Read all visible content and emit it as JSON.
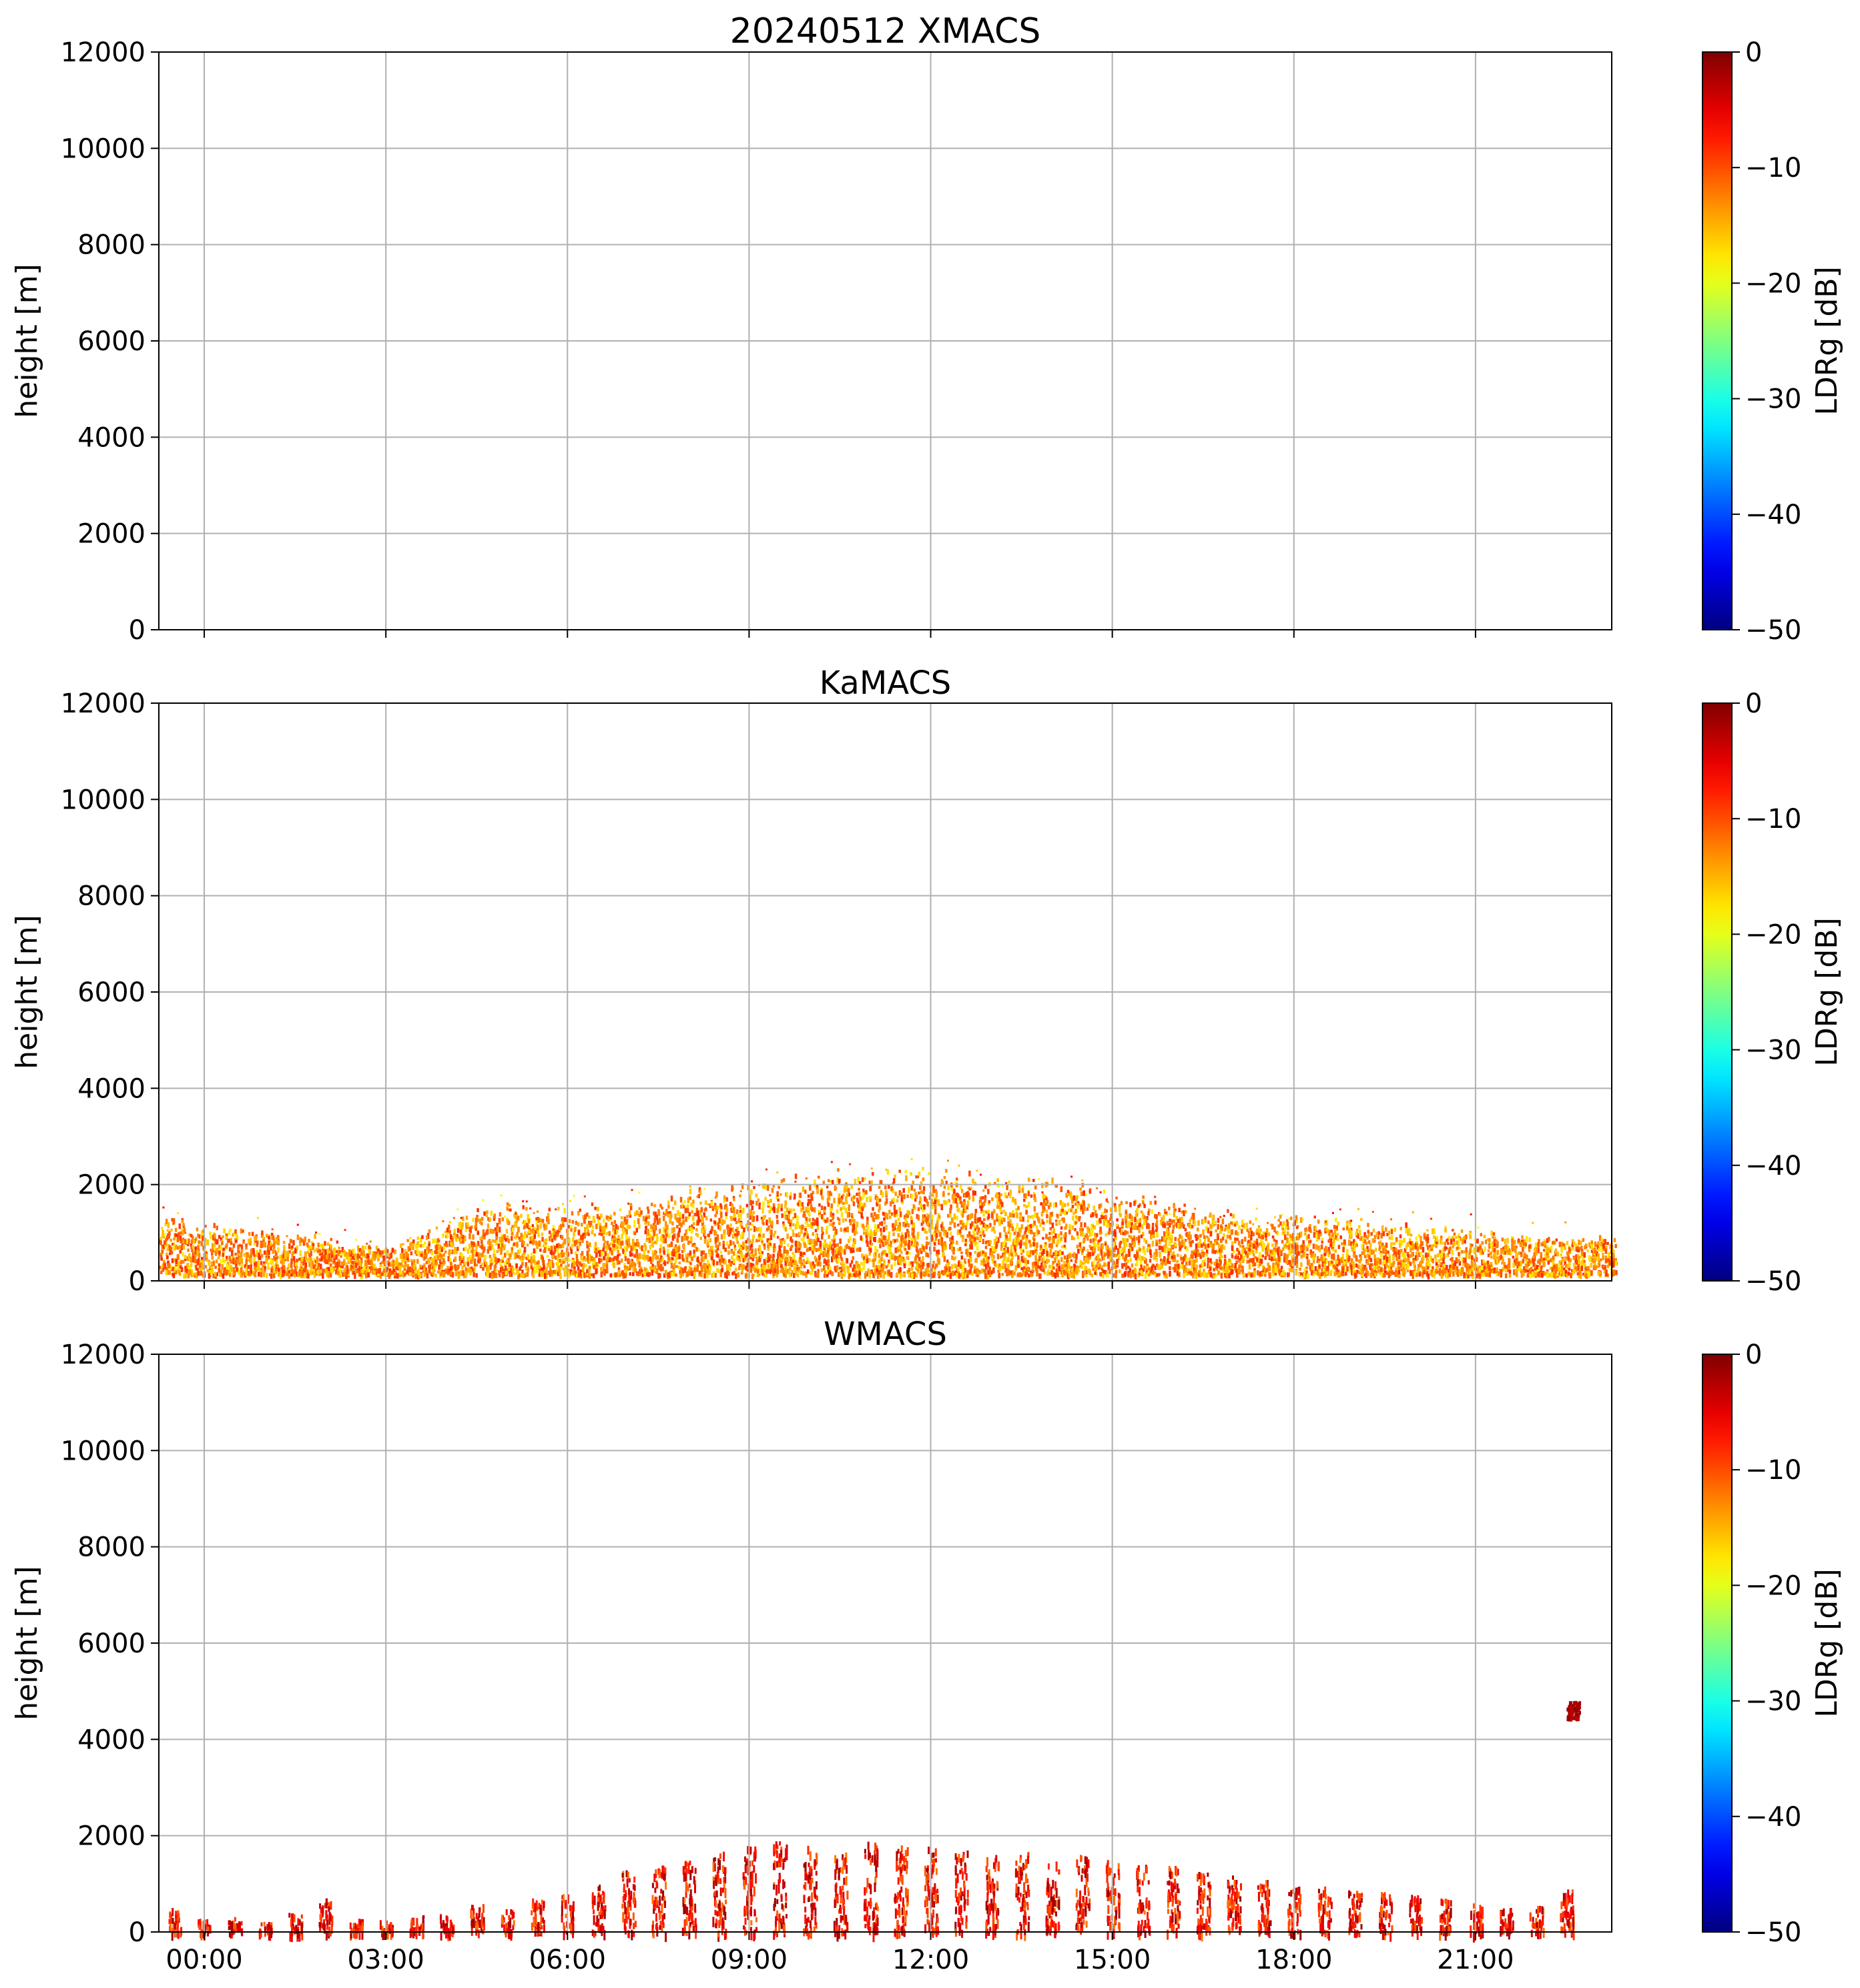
{
  "chart_data": [
    {
      "type": "heatmap",
      "title": "20240512 XMACS",
      "ylabel": "height [m]",
      "xlim": [
        "23:15",
        "23:15 next day"
      ],
      "ylim": [
        0,
        12000
      ],
      "y_ticks": [
        "0",
        "2000",
        "4000",
        "6000",
        "8000",
        "10000",
        "12000"
      ],
      "x_ticks": [
        "00:00",
        "03:00",
        "06:00",
        "09:00",
        "12:00",
        "15:00",
        "18:00",
        "21:00"
      ],
      "show_x_tick_labels": false,
      "grid": true,
      "colorbar": {
        "label": "LDRg [dB]",
        "range": [
          -50,
          0
        ],
        "ticks": [
          "0",
          "−10",
          "−20",
          "−30",
          "−40",
          "−50"
        ],
        "colormap": "jet"
      },
      "echo": {
        "columns": []
      }
    },
    {
      "type": "heatmap",
      "title": "KaMACS",
      "ylabel": "height [m]",
      "ylim": [
        0,
        12000
      ],
      "y_ticks": [
        "0",
        "2000",
        "4000",
        "6000",
        "8000",
        "10000",
        "12000"
      ],
      "x_ticks": [
        "00:00",
        "03:00",
        "06:00",
        "09:00",
        "12:00",
        "15:00",
        "18:00",
        "21:00"
      ],
      "show_x_tick_labels": false,
      "grid": true,
      "colorbar": {
        "label": "LDRg [dB]",
        "range": [
          -50,
          0
        ],
        "ticks": [
          "0",
          "−10",
          "−20",
          "−30",
          "−40",
          "−50"
        ],
        "colormap": "jet"
      },
      "echo": {
        "style": "continuous",
        "top_profile_hours": [
          -0.75,
          0,
          1,
          2,
          3,
          4,
          5,
          6,
          7,
          8,
          9,
          10,
          11,
          12,
          13,
          14,
          15,
          16,
          17,
          18,
          19,
          20,
          21,
          22,
          23.25
        ],
        "top_profile_m": [
          1100,
          900,
          800,
          700,
          500,
          1000,
          1300,
          1200,
          1300,
          1500,
          1700,
          1900,
          1900,
          2000,
          1800,
          1700,
          1500,
          1300,
          1100,
          1100,
          1000,
          900,
          800,
          700,
          700
        ],
        "typical_ldr_db": [
          -18,
          -8
        ]
      }
    },
    {
      "type": "heatmap",
      "title": "WMACS",
      "ylabel": "height [m]",
      "ylim": [
        0,
        12000
      ],
      "y_ticks": [
        "0",
        "2000",
        "4000",
        "6000",
        "8000",
        "10000",
        "12000"
      ],
      "x_ticks": [
        "00:00",
        "03:00",
        "06:00",
        "09:00",
        "12:00",
        "15:00",
        "18:00",
        "21:00"
      ],
      "show_x_tick_labels": true,
      "grid": true,
      "colorbar": {
        "label": "LDRg [dB]",
        "range": [
          -50,
          0
        ],
        "ticks": [
          "0",
          "−10",
          "−20",
          "−30",
          "−40",
          "−50"
        ],
        "colormap": "jet"
      },
      "echo": {
        "style": "columns",
        "column_hours": [
          -0.5,
          0.0,
          0.5,
          1.0,
          1.5,
          2.0,
          2.5,
          3.0,
          3.5,
          4.0,
          4.5,
          5.0,
          5.5,
          6.0,
          6.5,
          7.0,
          7.5,
          8.0,
          8.5,
          9.0,
          9.5,
          10.0,
          10.5,
          11.0,
          11.5,
          12.0,
          12.5,
          13.0,
          13.5,
          14.0,
          14.5,
          15.0,
          15.5,
          16.0,
          16.5,
          17.0,
          17.5,
          18.0,
          18.5,
          19.0,
          19.5,
          20.0,
          20.5,
          21.0,
          21.5,
          22.0,
          22.5
        ],
        "column_tops_m": [
          500,
          300,
          350,
          250,
          400,
          700,
          300,
          250,
          350,
          400,
          600,
          500,
          700,
          800,
          1100,
          1300,
          1400,
          1500,
          1700,
          1800,
          1900,
          1800,
          1700,
          1900,
          1800,
          1800,
          1700,
          1600,
          1700,
          1500,
          1600,
          1500,
          1400,
          1400,
          1300,
          1200,
          1100,
          1000,
          950,
          900,
          850,
          800,
          700,
          600,
          500,
          550,
          900
        ],
        "typical_ldr_db": [
          -12,
          -1
        ],
        "elevated_patch": {
          "hour": 22.6,
          "height_m": [
            4450,
            4800
          ],
          "ldr_db": -1
        }
      }
    }
  ]
}
